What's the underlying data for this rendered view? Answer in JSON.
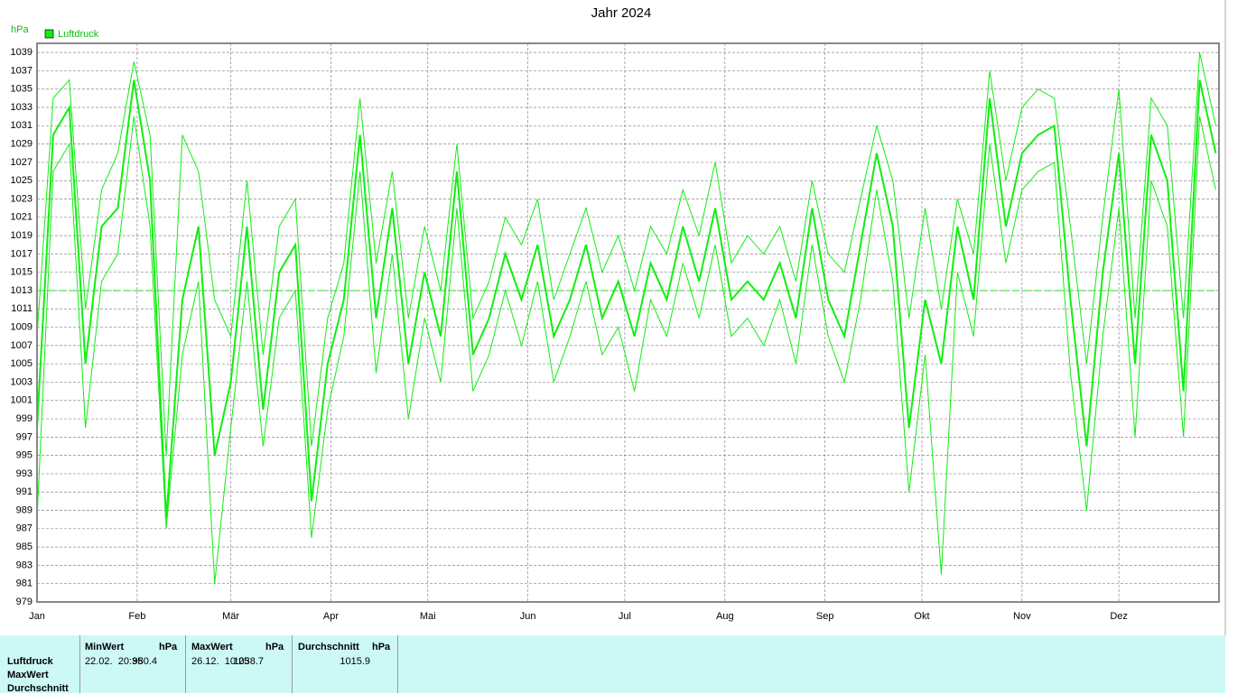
{
  "chart_data": {
    "type": "line",
    "title": "Jahr 2024",
    "y_label": "hPa",
    "x": [
      1,
      6,
      11,
      16,
      21,
      26,
      31,
      36,
      41,
      46,
      51,
      56,
      61,
      66,
      71,
      76,
      81,
      86,
      91,
      96,
      101,
      106,
      111,
      116,
      121,
      126,
      131,
      136,
      141,
      146,
      151,
      156,
      161,
      166,
      171,
      176,
      181,
      186,
      191,
      196,
      201,
      206,
      211,
      216,
      221,
      226,
      231,
      236,
      241,
      246,
      251,
      256,
      261,
      266,
      271,
      276,
      281,
      286,
      291,
      296,
      301,
      306,
      311,
      316,
      321,
      326,
      331,
      336,
      341,
      346,
      351,
      356,
      361,
      366
    ],
    "xlim": [
      1,
      367
    ],
    "xticks": [
      {
        "value": 1,
        "label": "Jan"
      },
      {
        "value": 32,
        "label": "Feb"
      },
      {
        "value": 61,
        "label": "Mär"
      },
      {
        "value": 92,
        "label": "Apr"
      },
      {
        "value": 122,
        "label": "Mai"
      },
      {
        "value": 153,
        "label": "Jun"
      },
      {
        "value": 183,
        "label": "Jul"
      },
      {
        "value": 214,
        "label": "Aug"
      },
      {
        "value": 245,
        "label": "Sep"
      },
      {
        "value": 275,
        "label": "Okt"
      },
      {
        "value": 306,
        "label": "Nov"
      },
      {
        "value": 336,
        "label": "Dez"
      }
    ],
    "ylim": [
      979,
      1040
    ],
    "yticks": [
      979,
      981,
      983,
      985,
      987,
      989,
      991,
      993,
      995,
      997,
      999,
      1001,
      1003,
      1005,
      1007,
      1009,
      1011,
      1013,
      1015,
      1017,
      1019,
      1021,
      1023,
      1025,
      1027,
      1029,
      1031,
      1033,
      1035,
      1037,
      1039
    ],
    "grid": true,
    "legend": "top-left",
    "reference_line": {
      "value": 1013,
      "color": "#22dd22"
    },
    "series": [
      {
        "name": "Luftdruck",
        "color": "#11ee11",
        "values": [
          998,
          1030,
          1033,
          1005,
          1020,
          1022,
          1036,
          1025,
          988,
          1012,
          1020,
          995,
          1003,
          1020,
          1000,
          1015,
          1018,
          990,
          1005,
          1012,
          1030,
          1010,
          1022,
          1005,
          1015,
          1008,
          1026,
          1006,
          1010,
          1017,
          1012,
          1018,
          1008,
          1012,
          1018,
          1010,
          1014,
          1008,
          1016,
          1012,
          1020,
          1014,
          1022,
          1012,
          1014,
          1012,
          1016,
          1010,
          1022,
          1012,
          1008,
          1018,
          1028,
          1020,
          998,
          1012,
          1005,
          1020,
          1012,
          1034,
          1020,
          1028,
          1030,
          1031,
          1012,
          996,
          1015,
          1028,
          1005,
          1030,
          1025,
          1002,
          1036,
          1028
        ]
      },
      {
        "color": "#11ee11",
        "values": [
          1008,
          1034,
          1036,
          1011,
          1024,
          1028,
          1038,
          1030,
          995,
          1030,
          1026,
          1012,
          1008,
          1025,
          1006,
          1020,
          1023,
          996,
          1010,
          1016,
          1034,
          1016,
          1026,
          1010,
          1020,
          1013,
          1029,
          1010,
          1014,
          1021,
          1018,
          1023,
          1012,
          1017,
          1022,
          1015,
          1019,
          1013,
          1020,
          1017,
          1024,
          1019,
          1027,
          1016,
          1019,
          1017,
          1020,
          1014,
          1025,
          1017,
          1015,
          1023,
          1031,
          1025,
          1010,
          1022,
          1011,
          1023,
          1017,
          1037,
          1025,
          1033,
          1035,
          1034,
          1020,
          1005,
          1021,
          1035,
          1010,
          1034,
          1031,
          1010,
          1039,
          1031
        ]
      },
      {
        "color": "#11ee11",
        "values": [
          988,
          1026,
          1029,
          998,
          1014,
          1017,
          1032,
          1020,
          987,
          1006,
          1014,
          981,
          998,
          1014,
          996,
          1010,
          1013,
          986,
          1000,
          1008,
          1026,
          1004,
          1017,
          999,
          1010,
          1003,
          1022,
          1002,
          1006,
          1013,
          1007,
          1014,
          1003,
          1008,
          1014,
          1006,
          1009,
          1002,
          1012,
          1008,
          1016,
          1010,
          1018,
          1008,
          1010,
          1007,
          1012,
          1005,
          1018,
          1008,
          1003,
          1012,
          1024,
          1014,
          991,
          1006,
          982,
          1015,
          1008,
          1029,
          1016,
          1024,
          1026,
          1027,
          1004,
          989,
          1008,
          1022,
          997,
          1025,
          1020,
          997,
          1032,
          1024
        ]
      }
    ]
  },
  "table": {
    "row_labels": [
      "Luftdruck",
      "MaxWert",
      "Durchschnitt"
    ],
    "columns": [
      {
        "header": "MinWert",
        "unit": "hPa",
        "date": "22.02.  20:35",
        "value": "980.4"
      },
      {
        "header": "MaxWert",
        "unit": "hPa",
        "date": "26.12.  10:25",
        "value": "1038.7"
      },
      {
        "header": "Durchschnitt",
        "unit": "hPa",
        "value": "1015.9"
      }
    ]
  }
}
